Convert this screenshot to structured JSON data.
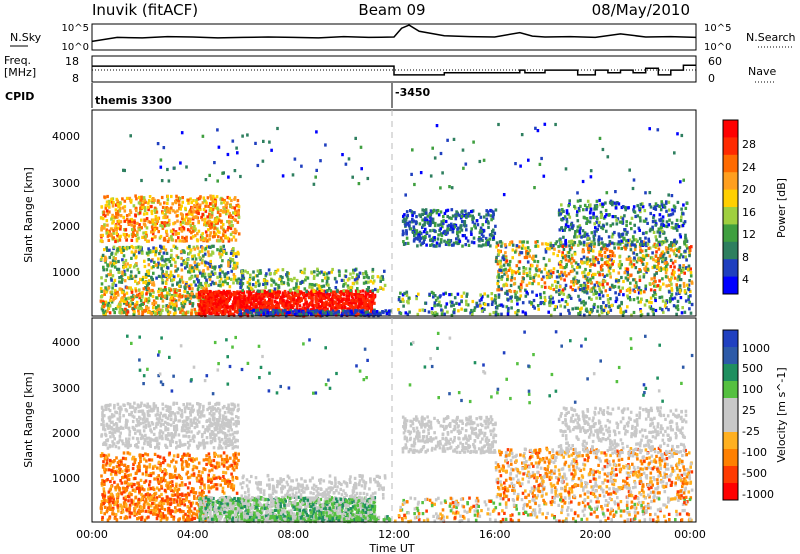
{
  "header": {
    "station": "Inuvik (fitACF)",
    "beam": "Beam 09",
    "date": "08/May/2010"
  },
  "colors": {
    "power_scale": [
      "#0000ff",
      "#1f3fbf",
      "#2e7f5f",
      "#3f9f3f",
      "#9fcf3f",
      "#ffcf00",
      "#ff9f1f",
      "#ff6a00",
      "#ff2a00",
      "#ff0000"
    ],
    "velocity_scale": [
      "#2040c0",
      "#2d5aa8",
      "#1f8f5f",
      "#55c040",
      "#c8c8c8",
      "#c8c8c8",
      "#ffb020",
      "#ff8000",
      "#ff3a00",
      "#ff0000"
    ],
    "dashed_line": "#bbbbbb"
  },
  "chart_data": [
    {
      "type": "line",
      "name_label": "N.Sky",
      "right_label": "N.Search",
      "yticks_left": [
        "10^5",
        "10^0"
      ],
      "yticks_right": [
        "10^5",
        "10^0"
      ],
      "x": [
        0,
        1,
        2,
        3,
        4,
        5,
        6,
        7,
        8,
        9,
        10,
        11,
        12,
        12.3,
        12.6,
        13,
        14,
        15,
        16,
        17,
        17.5,
        18,
        19,
        20,
        21,
        22,
        23,
        24
      ],
      "values": [
        1.5,
        2.4,
        2.3,
        2.6,
        2.5,
        2.3,
        2.4,
        2.5,
        2.4,
        2.3,
        2.6,
        2.4,
        2.5,
        4.5,
        5.2,
        3.8,
        2.8,
        2.6,
        2.5,
        3.5,
        2.7,
        2.5,
        2.6,
        2.4,
        3.2,
        2.5,
        2.6,
        2.4
      ]
    },
    {
      "type": "line",
      "name_label": "Freq.",
      "unit_label": "[MHz]",
      "right_label": "Nave",
      "yticks_left": [
        "18",
        "8"
      ],
      "yticks_right": [
        "60",
        "0"
      ],
      "x": [
        0,
        1,
        4,
        8,
        11.9,
        12.0,
        14,
        16,
        17,
        17.2,
        18,
        19,
        19.3,
        20,
        20.5,
        21,
        21.5,
        22,
        22.5,
        23,
        23.5,
        24
      ],
      "values": [
        38,
        38,
        38,
        38,
        38,
        14,
        20,
        20,
        27,
        20,
        27,
        27,
        14,
        27,
        20,
        27,
        20,
        32,
        14,
        27,
        40,
        40
      ]
    },
    {
      "type": "table",
      "label": "CPID",
      "segments": [
        {
          "start": 0,
          "text": "themis 3300"
        },
        {
          "start": 12,
          "text": "-3450"
        }
      ]
    },
    {
      "type": "heatmap",
      "ylabel": "Slant Range [km]",
      "yticks": [
        "1000",
        "2000",
        "3000",
        "4000"
      ],
      "ylim": [
        180,
        4600
      ],
      "xlim": [
        0,
        24
      ],
      "colorbar_label": "Power [dB]",
      "colorbar_ticks": [
        "28",
        "24",
        "20",
        "16",
        "12",
        "8",
        "4"
      ],
      "clim": [
        0,
        32
      ]
    },
    {
      "type": "heatmap",
      "ylabel": "Slant Range [km]",
      "yticks": [
        "1000",
        "2000",
        "3000",
        "4000"
      ],
      "ylim": [
        180,
        4600
      ],
      "xlim": [
        0,
        24
      ],
      "colorbar_label": "Velocity [m s^-1]",
      "colorbar_ticks": [
        "1000",
        "500",
        "100",
        "25",
        "-25",
        "-100",
        "-500",
        "-1000"
      ],
      "xticks": [
        "00:00",
        "04:00",
        "08:00",
        "12:00",
        "16:00",
        "20:00",
        "00:00"
      ],
      "xlabel": "Time UT"
    }
  ]
}
